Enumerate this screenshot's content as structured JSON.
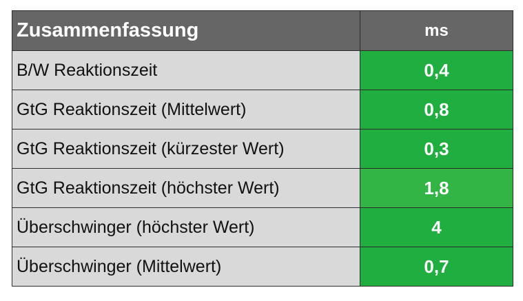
{
  "table": {
    "header": {
      "label": "Zusammenfassung",
      "unit": "ms"
    },
    "rows": [
      {
        "label": "B/W Reaktionszeit",
        "value": "0,4",
        "color": "#1fae3f"
      },
      {
        "label": "GtG Reaktionszeit (Mittelwert)",
        "value": "0,8",
        "color": "#1fae3f"
      },
      {
        "label": "GtG Reaktionszeit (kürzester Wert)",
        "value": "0,3",
        "color": "#1fae3f"
      },
      {
        "label": "GtG Reaktionszeit (höchster Wert)",
        "value": "1,8",
        "color": "#33b545"
      },
      {
        "label": "Überschwinger (höchster Wert)",
        "value": "4",
        "color": "#1fae3f"
      },
      {
        "label": "Überschwinger (Mittelwert)",
        "value": "0,7",
        "color": "#1fae3f"
      }
    ]
  }
}
